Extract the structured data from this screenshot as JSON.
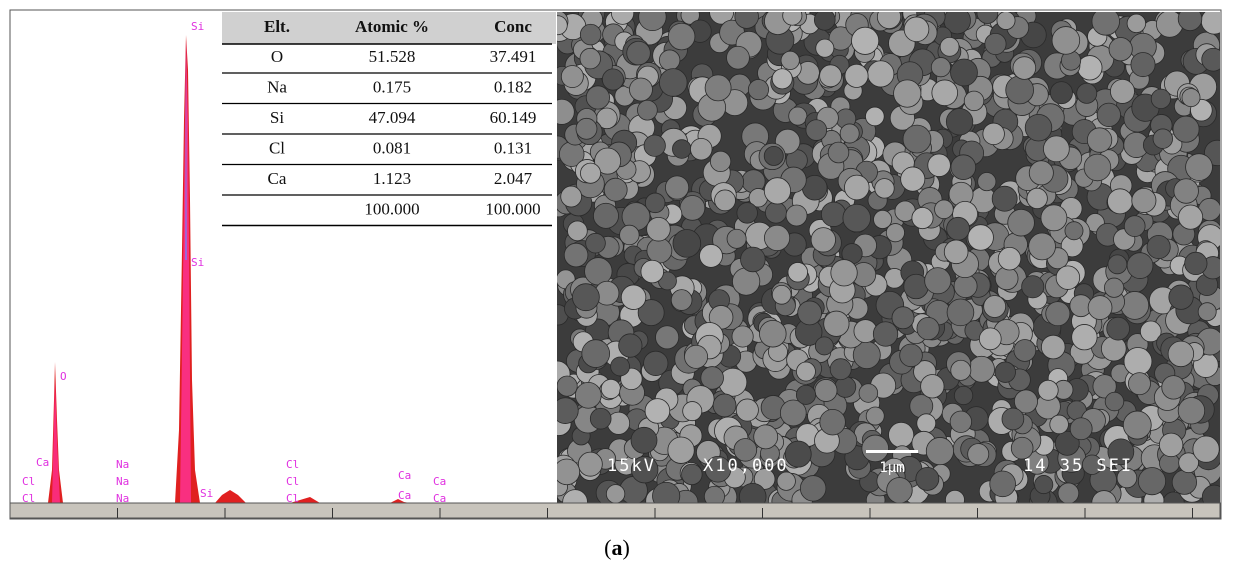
{
  "spectrum": {
    "peak_labels": [
      {
        "text": "Si"
      },
      {
        "text": "Si"
      },
      {
        "text": "O"
      },
      {
        "text": "Ca"
      },
      {
        "text": "Cl"
      },
      {
        "text": "Cl"
      },
      {
        "text": "Na"
      },
      {
        "text": "Na"
      },
      {
        "text": "Na"
      },
      {
        "text": "Si"
      },
      {
        "text": "Cl"
      },
      {
        "text": "Cl"
      },
      {
        "text": "Cl"
      },
      {
        "text": "Ca"
      },
      {
        "text": "Ca"
      },
      {
        "text": "Ca"
      },
      {
        "text": "Ca"
      }
    ]
  },
  "table": {
    "header": [
      "Elt.",
      "Atomic %",
      "Conc"
    ],
    "rows": [
      [
        "O",
        "51.528",
        "37.491"
      ],
      [
        "Na",
        "0.175",
        "0.182"
      ],
      [
        "Si",
        "47.094",
        "60.149"
      ],
      [
        "Cl",
        "0.081",
        "0.131"
      ],
      [
        "Ca",
        "1.123",
        "2.047"
      ]
    ],
    "total": {
      "atomic": "100.000",
      "conc": "100.000"
    }
  },
  "sem": {
    "voltage": "15kV",
    "magnification": "X10,000",
    "scale_bar": "1µm",
    "info": "14 35 SEI"
  },
  "caption": {
    "open": "(",
    "label": "a",
    "close": ")"
  }
}
